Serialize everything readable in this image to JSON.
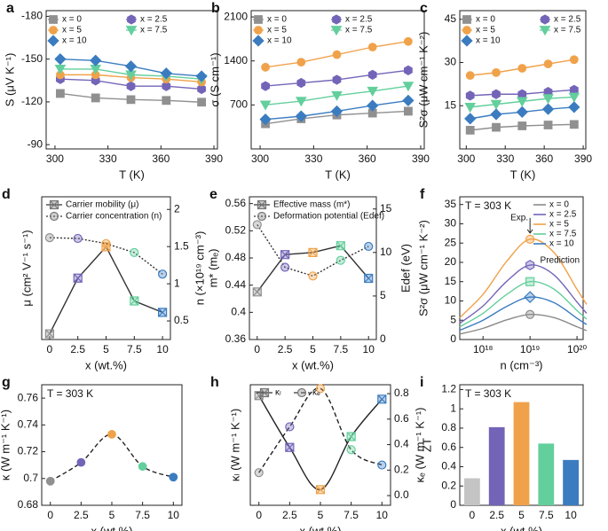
{
  "chart_data": [
    {
      "type": "line",
      "label": "a",
      "xlabel": "T (K)",
      "ylabel": "S (μV K⁻¹)",
      "x": [
        303,
        323,
        343,
        363,
        383
      ],
      "xlim": [
        295,
        392
      ],
      "xticks": [
        300,
        330,
        360,
        390
      ],
      "ylim": [
        -87,
        -184
      ],
      "yticks": [
        -180,
        -150,
        -120,
        -90
      ],
      "legend": "top-two-columns",
      "marker_fill": "solid",
      "series": [
        {
          "name": "x = 0",
          "color": "#909090",
          "marker": "square",
          "values": [
            -125.9,
            -122.8,
            -121.6,
            -121.0,
            -119.8
          ]
        },
        {
          "name": "x = 2.5",
          "color": "#7464b8",
          "marker": "hexagon",
          "values": [
            -136,
            -135,
            -131,
            -131,
            -129
          ]
        },
        {
          "name": "x = 5",
          "color": "#f0a24a",
          "marker": "circle",
          "values": [
            -139,
            -139,
            -137,
            -136,
            -134
          ]
        },
        {
          "name": "x = 7.5",
          "color": "#63cf9c",
          "marker": "triangle-down",
          "values": [
            -143,
            -143,
            -139,
            -138,
            -136
          ]
        },
        {
          "name": "x = 10",
          "color": "#3b7cc0",
          "marker": "diamond",
          "values": [
            -150,
            -149,
            -145,
            -140,
            -138
          ]
        }
      ]
    },
    {
      "type": "line",
      "label": "b",
      "xlabel": "T (K)",
      "ylabel": "σ (S cm⁻¹)",
      "x": [
        303,
        323,
        343,
        363,
        383
      ],
      "xlim": [
        295,
        392
      ],
      "xticks": [
        300,
        330,
        360,
        390
      ],
      "ylim": [
        0,
        2200
      ],
      "yticks": [
        700,
        1400,
        2100
      ],
      "legend": "top-two-columns",
      "marker_fill": "solid",
      "series": [
        {
          "name": "x = 0",
          "color": "#909090",
          "marker": "square",
          "values": [
            400,
            480,
            540,
            570,
            600
          ]
        },
        {
          "name": "x = 2.5",
          "color": "#7464b8",
          "marker": "hexagon",
          "values": [
            1000,
            1050,
            1100,
            1180,
            1250
          ]
        },
        {
          "name": "x = 5",
          "color": "#f0a24a",
          "marker": "circle",
          "values": [
            1300,
            1380,
            1500,
            1620,
            1710
          ]
        },
        {
          "name": "x = 7.5",
          "color": "#63cf9c",
          "marker": "triangle-down",
          "values": [
            700,
            760,
            850,
            920,
            1000
          ]
        },
        {
          "name": "x = 10",
          "color": "#3b7cc0",
          "marker": "diamond",
          "values": [
            470,
            520,
            600,
            690,
            770
          ]
        }
      ]
    },
    {
      "type": "line",
      "label": "c",
      "xlabel": "T (K)",
      "ylabel": "S²σ (μW cm⁻¹ K⁻²)",
      "x": [
        303,
        323,
        343,
        363,
        383
      ],
      "xlim": [
        295,
        392
      ],
      "xticks": [
        300,
        330,
        360,
        390
      ],
      "ylim": [
        0,
        48
      ],
      "yticks": [
        15,
        30,
        45
      ],
      "legend": "top-two-columns",
      "marker_fill": "solid",
      "series": [
        {
          "name": "x = 0",
          "color": "#909090",
          "marker": "square",
          "values": [
            6.5,
            7.5,
            8,
            8.3,
            8.5
          ]
        },
        {
          "name": "x = 2.5",
          "color": "#7464b8",
          "marker": "hexagon",
          "values": [
            18.5,
            19,
            19,
            19.8,
            20.5
          ]
        },
        {
          "name": "x = 5",
          "color": "#f0a24a",
          "marker": "circle",
          "values": [
            25.5,
            26.5,
            28,
            29.5,
            31
          ]
        },
        {
          "name": "x = 7.5",
          "color": "#63cf9c",
          "marker": "triangle-down",
          "values": [
            14.5,
            15.5,
            16.5,
            17.5,
            18
          ]
        },
        {
          "name": "x = 10",
          "color": "#3b7cc0",
          "marker": "diamond",
          "values": [
            10.5,
            12,
            12.8,
            13.8,
            14.5
          ]
        }
      ]
    },
    {
      "type": "line",
      "label": "d",
      "xlabel": "x (wt.%)",
      "ylabel": "μ (cm² V⁻¹ s⁻¹)",
      "y2label": "n (×10¹⁹ cm⁻³)",
      "x": [
        0,
        2.5,
        5,
        7.5,
        10
      ],
      "xlim": [
        -0.7,
        10.7
      ],
      "xticks": [
        0,
        2.5,
        5,
        7.5,
        10
      ],
      "ylim": [
        0,
        1
      ],
      "y2lim": [
        0.25,
        2.17
      ],
      "y2ticks": [
        0.5,
        1,
        1.5,
        2
      ],
      "legend": "top-left",
      "marker_fill": "light",
      "line_color": "#333333",
      "point_colors": [
        "#909090",
        "#7464b8",
        "#f0a24a",
        "#63cf9c",
        "#3b7cc0"
      ],
      "series": [
        {
          "name": "Carrier mobility (μ)",
          "marker": "crossed-square",
          "values": [
            0.04,
            0.43,
            0.65,
            0.27,
            0.19
          ]
        },
        {
          "name": "Carrier concentration (n)",
          "marker": "circle",
          "dash": "dotted",
          "axis": "y2",
          "values": [
            1.62,
            1.61,
            1.54,
            1.42,
            1.13
          ]
        }
      ]
    },
    {
      "type": "line",
      "label": "e",
      "xlabel": "x (wt.%)",
      "ylabel": "m* (mₑ)",
      "y2label": "Edef (eV)",
      "x": [
        0,
        2.5,
        5,
        7.5,
        10
      ],
      "xlim": [
        -0.7,
        10.7
      ],
      "xticks": [
        0,
        2.5,
        5,
        7.5,
        10
      ],
      "ylim": [
        0.36,
        0.57
      ],
      "yticks": [
        0.36,
        0.4,
        0.44,
        0.48,
        0.52,
        0.56
      ],
      "y2lim": [
        0,
        16.4
      ],
      "y2ticks": [
        0,
        5,
        10,
        15
      ],
      "legend": "top-left",
      "marker_fill": "light",
      "line_color": "#333333",
      "point_colors": [
        "#909090",
        "#7464b8",
        "#f0a24a",
        "#63cf9c",
        "#3b7cc0"
      ],
      "series": [
        {
          "name": "Effective mass (m*)",
          "marker": "crossed-square",
          "values": [
            0.43,
            0.485,
            0.488,
            0.498,
            0.45
          ]
        },
        {
          "name": "Deformation potential (Edef)",
          "marker": "circle",
          "dash": "dotted",
          "axis": "y2",
          "values": [
            13.2,
            8.3,
            7.3,
            9.1,
            10.7
          ]
        }
      ]
    },
    {
      "type": "line",
      "label": "f",
      "annotation": "T = 303 K",
      "exp_label": "Exp.",
      "prediction_label": "Prediction",
      "xlabel": "n (cm⁻³)",
      "ylabel": "S²σ (μW cm⁻¹ K⁻²)",
      "xlog": true,
      "x": [
        3.2e+17,
        1e+18,
        3.2e+18,
        1e+19,
        3.2e+19,
        1e+20,
        1.6e+20
      ],
      "xlim": [
        3.2e+17,
        1.35e+20
      ],
      "xticks": [
        {
          "value": 1e+18,
          "label": "10¹⁸"
        },
        {
          "value": 1e+19,
          "label": "10¹⁹"
        },
        {
          "value": 1e+20,
          "label": "10²⁰"
        }
      ],
      "ylim": [
        0,
        37
      ],
      "yticks": [
        0,
        5,
        10,
        15,
        20,
        25,
        30,
        35
      ],
      "legend": "top-right",
      "marker_fill": "light",
      "smooth": true,
      "series": [
        {
          "name": "x = 0",
          "color": "#8a8a8a",
          "marker": "circle",
          "exp_x": 1e+19,
          "exp_value": 6.5,
          "values": [
            1.4,
            2.9,
            5.1,
            6.5,
            5.7,
            3.3,
            2.3
          ]
        },
        {
          "name": "x = 2.5",
          "color": "#7464b8",
          "marker": "hexagon",
          "exp_x": 1e+19,
          "exp_value": 19.3,
          "values": [
            4.2,
            8.7,
            15.1,
            19.3,
            16.8,
            9.7,
            6.8
          ]
        },
        {
          "name": "x = 5",
          "color": "#f0a24a",
          "marker": "circle",
          "exp_x": 1e+19,
          "exp_value": 26,
          "values": [
            5.7,
            11.7,
            20.3,
            26,
            22.6,
            13,
            9.1
          ]
        },
        {
          "name": "x = 7.5",
          "color": "#63cf9c",
          "marker": "square",
          "exp_x": 1e+19,
          "exp_value": 15,
          "values": [
            3.3,
            6.8,
            11.7,
            15,
            13.1,
            7.5,
            5.3
          ]
        },
        {
          "name": "x = 10",
          "color": "#3b7cc0",
          "marker": "diamond",
          "exp_x": 1e+19,
          "exp_value": 11,
          "values": [
            2.4,
            5,
            8.6,
            11,
            9.6,
            5.5,
            3.9
          ]
        }
      ]
    },
    {
      "type": "line",
      "label": "g",
      "annotation": "T = 303 K",
      "xlabel": "x (wt.%)",
      "ylabel": "κ (W m⁻¹ K⁻¹)",
      "x": [
        0,
        2.5,
        5,
        7.5,
        10
      ],
      "xlim": [
        -0.7,
        10.7
      ],
      "xticks": [
        0,
        2.5,
        5,
        7.5,
        10
      ],
      "ylim": [
        0.68,
        0.77
      ],
      "yticks": [
        0.68,
        0.7,
        0.72,
        0.74,
        0.76
      ],
      "marker_fill": "solid",
      "line_color": "#222222",
      "smooth": true,
      "point_colors": [
        "#909090",
        "#7464b8",
        "#f0a24a",
        "#63cf9c",
        "#3b7cc0"
      ],
      "series": [
        {
          "marker": "circle",
          "dash": "dashed",
          "values": [
            0.698,
            0.712,
            0.733,
            0.709,
            0.701
          ]
        }
      ]
    },
    {
      "type": "line",
      "label": "h",
      "xlabel": "x (wt.%)",
      "ylabel": "κₗ (W m⁻¹ K⁻¹)",
      "y2label": "κₑ (W m⁻¹ K⁻¹)",
      "x": [
        0,
        2.5,
        5,
        7.5,
        10
      ],
      "xlim": [
        -0.7,
        10.7
      ],
      "xticks": [
        0,
        2.5,
        5,
        7.5,
        10
      ],
      "ylim": [
        0,
        1
      ],
      "y2lim": [
        -0.076,
        0.87
      ],
      "y2ticks": [
        {
          "value": 0,
          "label": "0.0"
        },
        0.2,
        0.4,
        0.6,
        0.8
      ],
      "legend": "top-row",
      "marker_fill": "light",
      "line_color": "#222222",
      "smooth": true,
      "point_colors": [
        "#909090",
        "#7464b8",
        "#f0a24a",
        "#63cf9c",
        "#3b7cc0"
      ],
      "series": [
        {
          "name": "κₗ",
          "marker": "crossed-square",
          "values": [
            0.91,
            0.48,
            0.13,
            0.57,
            0.88
          ]
        },
        {
          "name": "κₑ",
          "marker": "circle",
          "dash": "dashed",
          "axis": "y2",
          "values": [
            0.18,
            0.54,
            0.84,
            0.36,
            0.24
          ]
        }
      ]
    },
    {
      "type": "bar",
      "label": "i",
      "annotation": "T = 303 K",
      "xlabel": "x (wt.%)",
      "ylabel": "ZT",
      "categories": [
        "0",
        "2.5",
        "5",
        "7.5",
        "10"
      ],
      "ylim": [
        0,
        1.25
      ],
      "yticks": [
        0,
        0.2,
        0.4,
        0.6,
        0.8,
        1,
        1.2
      ],
      "colors": [
        "#c4c4c4",
        "#7464b8",
        "#f0a24a",
        "#63cf9c",
        "#3b7cc0"
      ],
      "values": [
        0.28,
        0.81,
        1.07,
        0.64,
        0.47
      ]
    }
  ]
}
